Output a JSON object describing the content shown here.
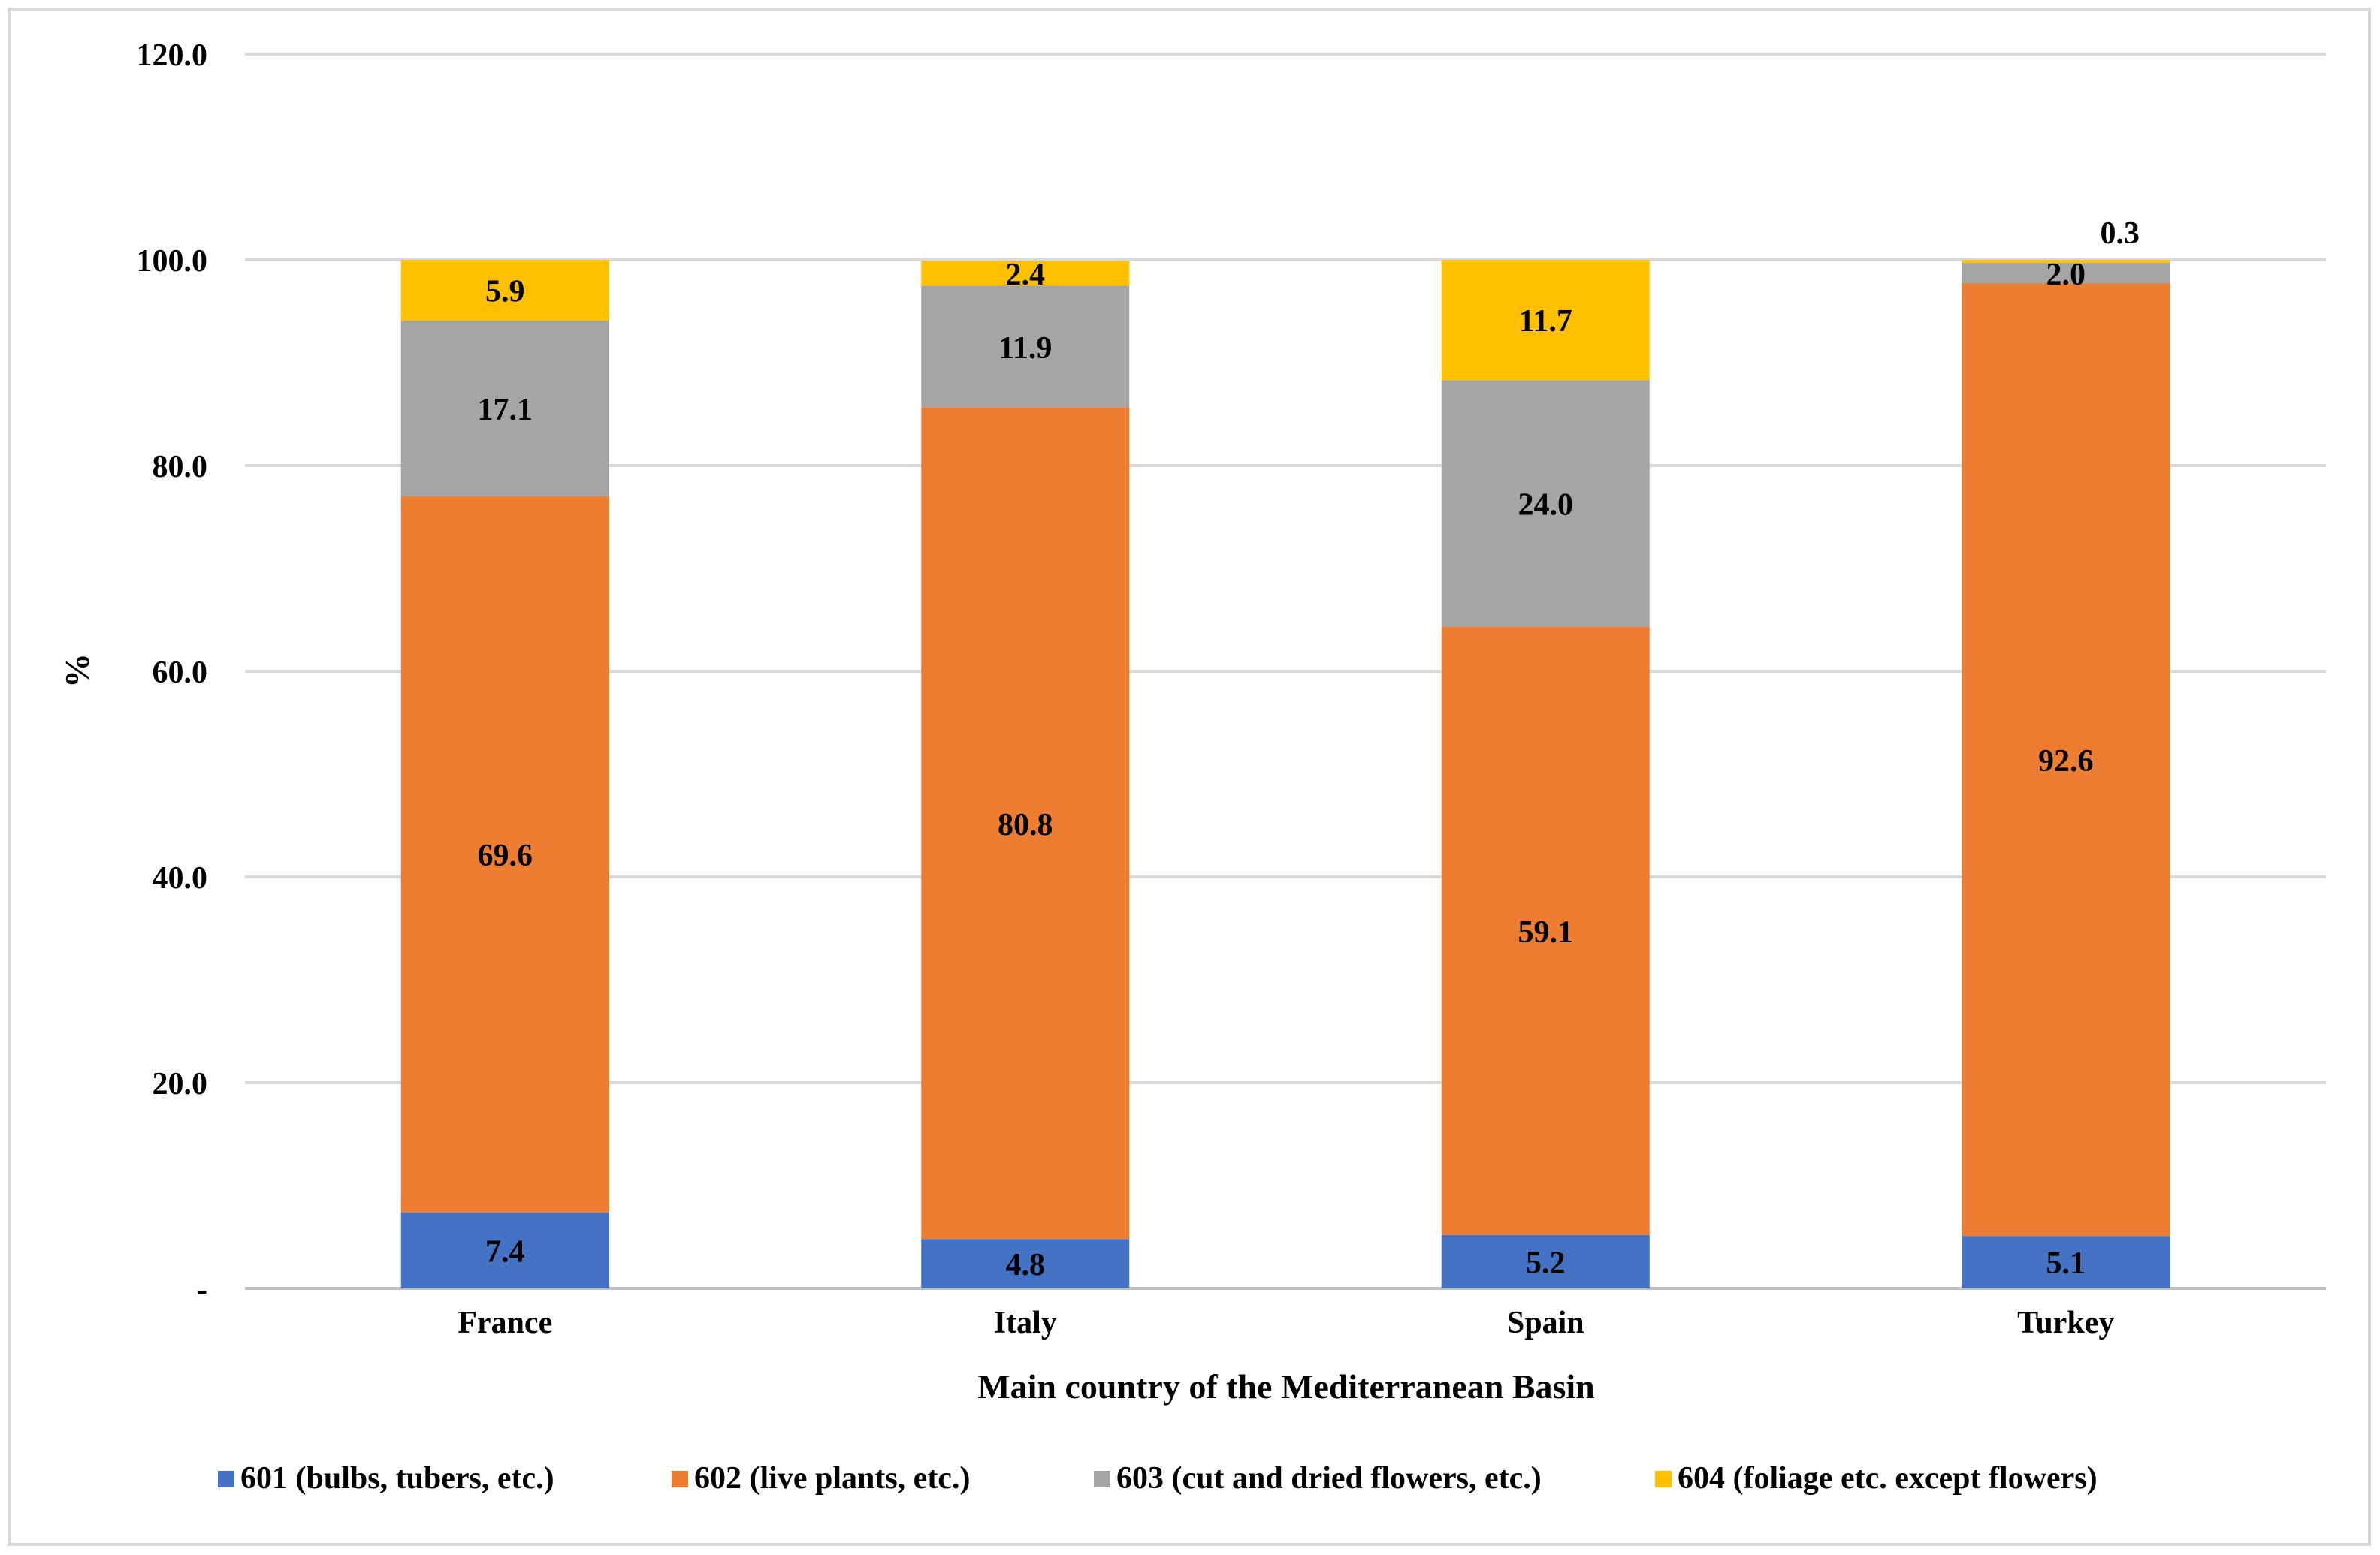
{
  "chart_data": {
    "type": "bar",
    "stacked": true,
    "title": "",
    "xlabel": "Main country of the Mediterranean Basin",
    "ylabel": "%",
    "ylim": [
      0,
      120
    ],
    "yticks": [
      0,
      20,
      40,
      60,
      80,
      100,
      120
    ],
    "ytick_labels": [
      "-",
      "20.0",
      "40.0",
      "60.0",
      "80.0",
      "100.0",
      "120.0"
    ],
    "grid": true,
    "legend_position": "bottom",
    "categories": [
      "France",
      "Italy",
      "Spain",
      "Turkey"
    ],
    "series": [
      {
        "name": "601 (bulbs, tubers, etc.)",
        "color": "#4472c4",
        "values": [
          7.4,
          4.8,
          5.2,
          5.1
        ],
        "labels": [
          "7.4",
          "4.8",
          "5.2",
          "5.1"
        ]
      },
      {
        "name": "602 (live plants, etc.)",
        "color": "#ed7d31",
        "values": [
          69.6,
          80.8,
          59.1,
          92.6
        ],
        "labels": [
          "69.6",
          "80.8",
          "59.1",
          "92.6"
        ]
      },
      {
        "name": "603 (cut and dried flowers, etc.)",
        "color": "#a5a5a5",
        "values": [
          17.1,
          11.9,
          24.0,
          2.0
        ],
        "labels": [
          "17.1",
          "11.9",
          "24.0",
          "2.0"
        ]
      },
      {
        "name": "604 (foliage etc. except flowers)",
        "color": "#ffc000",
        "values": [
          5.9,
          2.4,
          11.7,
          0.3
        ],
        "labels": [
          "5.9",
          "2.4",
          "11.7",
          "0.3"
        ]
      }
    ]
  }
}
